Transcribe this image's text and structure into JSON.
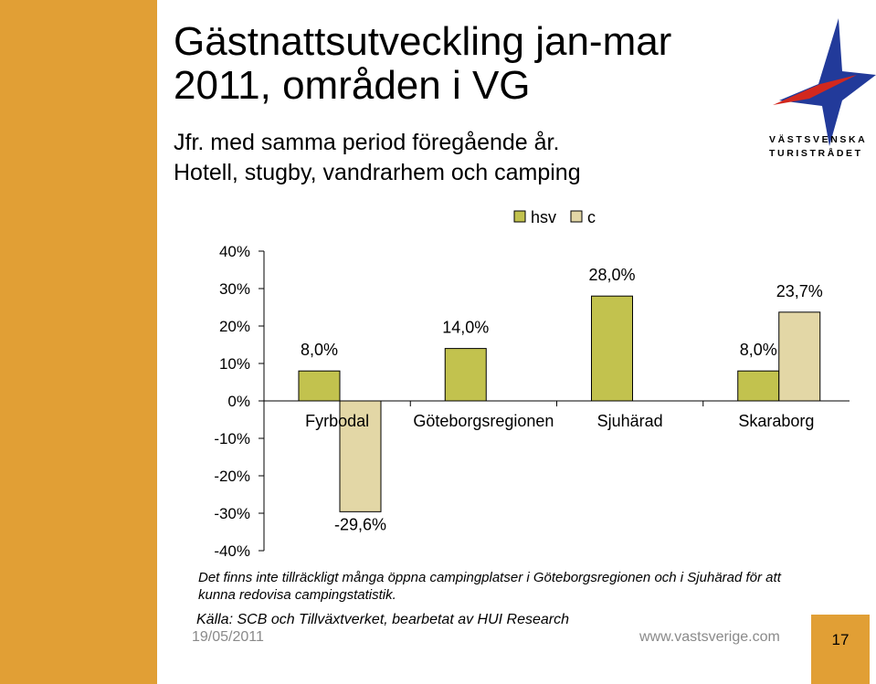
{
  "slide": {
    "title_line1": "Gästnattsutveckling jan-mar",
    "title_line2": "2011, områden i VG",
    "subtitle_line1": "Jfr. med samma period föregående år.",
    "subtitle_line2": "Hotell, stugby, vandrarhem och camping",
    "logo_line1": "VÄSTSVENSKA",
    "logo_line2": "TURISTRÅDET",
    "note_line1": "Det finns inte tillräckligt många öppna campingplatser i Göteborgsregionen och i Sjuhärad för att",
    "note_line2": "kunna redovisa campingstatistik.",
    "source": "Källa: SCB och Tillväxtverket, bearbetat av HUI Research",
    "date": "19/05/2011",
    "url": "www.vastsverige.com",
    "page_number": "17",
    "accent_color": "#e19f35"
  },
  "chart_data": {
    "type": "bar",
    "categories": [
      "Fyrbodal",
      "Göteborgsregionen",
      "Sjuhärad",
      "Skaraborg"
    ],
    "series": [
      {
        "name": "hsv",
        "color": "#c2c24e",
        "values": [
          8.0,
          14.0,
          28.0,
          8.0
        ],
        "labels": [
          "8,0%",
          "14,0%",
          "28,0%",
          "8,0%"
        ]
      },
      {
        "name": "c",
        "color": "#e3d7a6",
        "values": [
          -29.6,
          null,
          null,
          23.7
        ],
        "labels": [
          "-29,6%",
          "",
          "",
          "23,7%"
        ]
      }
    ],
    "ylim": [
      -40,
      40
    ],
    "yticks": [
      40,
      30,
      20,
      10,
      0,
      -10,
      -20,
      -30,
      -40
    ],
    "ytick_labels": [
      "40%",
      "30%",
      "20%",
      "10%",
      "0%",
      "-10%",
      "-20%",
      "-30%",
      "-40%"
    ],
    "legend_position": "top",
    "grid": false
  }
}
